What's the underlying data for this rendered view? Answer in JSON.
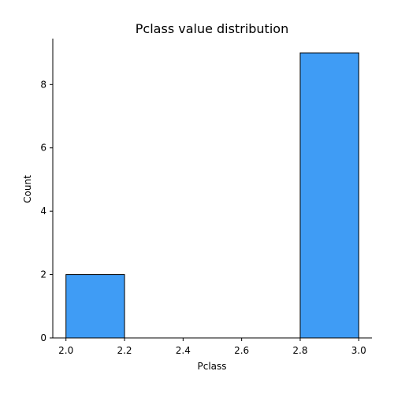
{
  "chart_data": {
    "type": "bar",
    "title": "Pclass value distribution",
    "xlabel": "Pclass",
    "ylabel": "Count",
    "xlim": [
      1.955,
      3.045
    ],
    "ylim": [
      0,
      9.45
    ],
    "x_ticks": [
      2.0,
      2.2,
      2.4,
      2.6,
      2.8,
      3.0
    ],
    "x_tick_labels": [
      "2.0",
      "2.2",
      "2.4",
      "2.6",
      "2.8",
      "3.0"
    ],
    "y_ticks": [
      0,
      2,
      4,
      6,
      8
    ],
    "y_tick_labels": [
      "0",
      "2",
      "4",
      "6",
      "8"
    ],
    "bins": [
      {
        "x0": 2.0,
        "x1": 2.2,
        "count": 2
      },
      {
        "x0": 2.2,
        "x1": 2.4,
        "count": 0
      },
      {
        "x0": 2.4,
        "x1": 2.6,
        "count": 0
      },
      {
        "x0": 2.6,
        "x1": 2.8,
        "count": 0
      },
      {
        "x0": 2.8,
        "x1": 3.0,
        "count": 9
      }
    ],
    "grid": false,
    "colors": {
      "bar_fill": "#3f9cf5",
      "bar_edge": "#000000",
      "axis": "#000000"
    }
  }
}
